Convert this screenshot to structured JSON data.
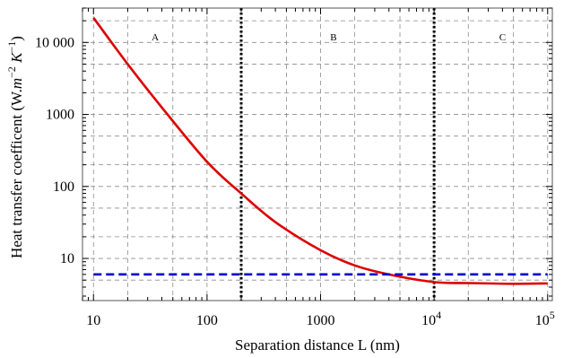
{
  "chart_data": {
    "type": "line",
    "title": "",
    "xlabel": "Separation distance L (nm)",
    "ylabel": "Heat transfer coefficent (W.m−2 K−1)",
    "x_scale": "log",
    "y_scale": "log",
    "xlim": [
      8,
      110000
    ],
    "ylim": [
      2.6,
      30000
    ],
    "grid": true,
    "x_ticks": [
      {
        "value": 10,
        "label": "10"
      },
      {
        "value": 100,
        "label": "100"
      },
      {
        "value": 1000,
        "label": "1000"
      },
      {
        "value": 10000,
        "label": "10",
        "exponent": "4"
      },
      {
        "value": 100000,
        "label": "10",
        "exponent": "5"
      }
    ],
    "y_ticks": [
      {
        "value": 10,
        "label": "10"
      },
      {
        "value": 100,
        "label": "100"
      },
      {
        "value": 1000,
        "label": "1000"
      },
      {
        "value": 10000,
        "label": "10 000"
      }
    ],
    "series": [
      {
        "color": "#dd0000",
        "style": "solid",
        "x": [
          10,
          20,
          40,
          100,
          200,
          400,
          1000,
          2000,
          4000,
          10000,
          20000,
          50000,
          100000
        ],
        "values": [
          22000,
          5000,
          1250,
          220,
          80,
          32,
          13,
          8,
          6,
          4.7,
          4.55,
          4.45,
          4.5
        ]
      },
      {
        "color": "#0000cc",
        "style": "dashed",
        "x": [
          10,
          100000
        ],
        "values": [
          6,
          6
        ]
      }
    ],
    "vertical_lines": [
      {
        "x": 200,
        "style": "dotted",
        "color": "#000000"
      },
      {
        "x": 10000,
        "style": "dotted",
        "color": "#000000"
      }
    ],
    "annotations": [
      {
        "text": "A",
        "x": 35,
        "y": 12000
      },
      {
        "text": "B",
        "x": 1300,
        "y": 12000
      },
      {
        "text": "C",
        "x": 40000,
        "y": 12000
      }
    ]
  }
}
